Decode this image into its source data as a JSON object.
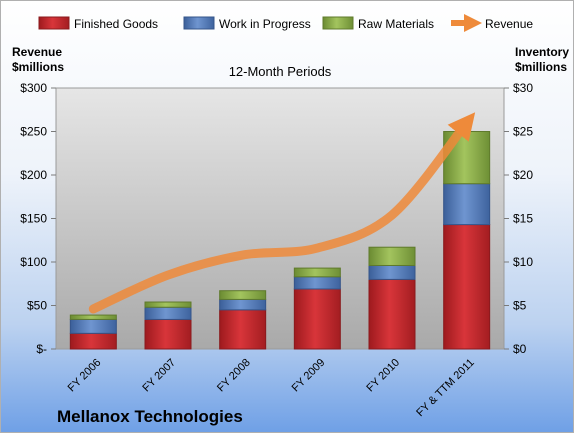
{
  "company": "Mellanox Technologies",
  "chart_data": {
    "type": "bar",
    "stacked": true,
    "title": "12-Month Periods",
    "categories": [
      "FY 2006",
      "FY 2007",
      "FY 2008",
      "FY 2009",
      "FY 2010",
      "FY & TTM 2011"
    ],
    "left_axis": {
      "label_line1": "Revenue",
      "label_line2": "$millions",
      "ticks": [
        "$-",
        "$50",
        "$100",
        "$150",
        "$200",
        "$250",
        "$300"
      ],
      "ylim": [
        0,
        300
      ]
    },
    "right_axis": {
      "label_line1": "Inventory",
      "label_line2": "$millions",
      "ticks": [
        "$0",
        "$5",
        "$10",
        "$15",
        "$20",
        "$25",
        "$30"
      ],
      "ylim": [
        0,
        30
      ]
    },
    "series": [
      {
        "name": "Finished Goods",
        "axis": "right",
        "kind": "bar",
        "color": "#c0282d",
        "values": [
          1.8,
          3.4,
          4.5,
          6.9,
          8.0,
          14.3
        ]
      },
      {
        "name": "Work in Progress",
        "axis": "right",
        "kind": "bar",
        "color": "#4f78b8",
        "values": [
          1.6,
          1.4,
          1.2,
          1.4,
          1.6,
          4.7
        ]
      },
      {
        "name": "Raw Materials",
        "axis": "right",
        "kind": "bar",
        "color": "#8db04a",
        "values": [
          0.5,
          0.6,
          1.0,
          1.0,
          2.1,
          6.0
        ]
      },
      {
        "name": "Revenue",
        "axis": "left",
        "kind": "line",
        "color": "#ee8a3a",
        "values": [
          46,
          85,
          108,
          116,
          154,
          260
        ]
      }
    ],
    "legend_position": "top",
    "grid": false
  }
}
